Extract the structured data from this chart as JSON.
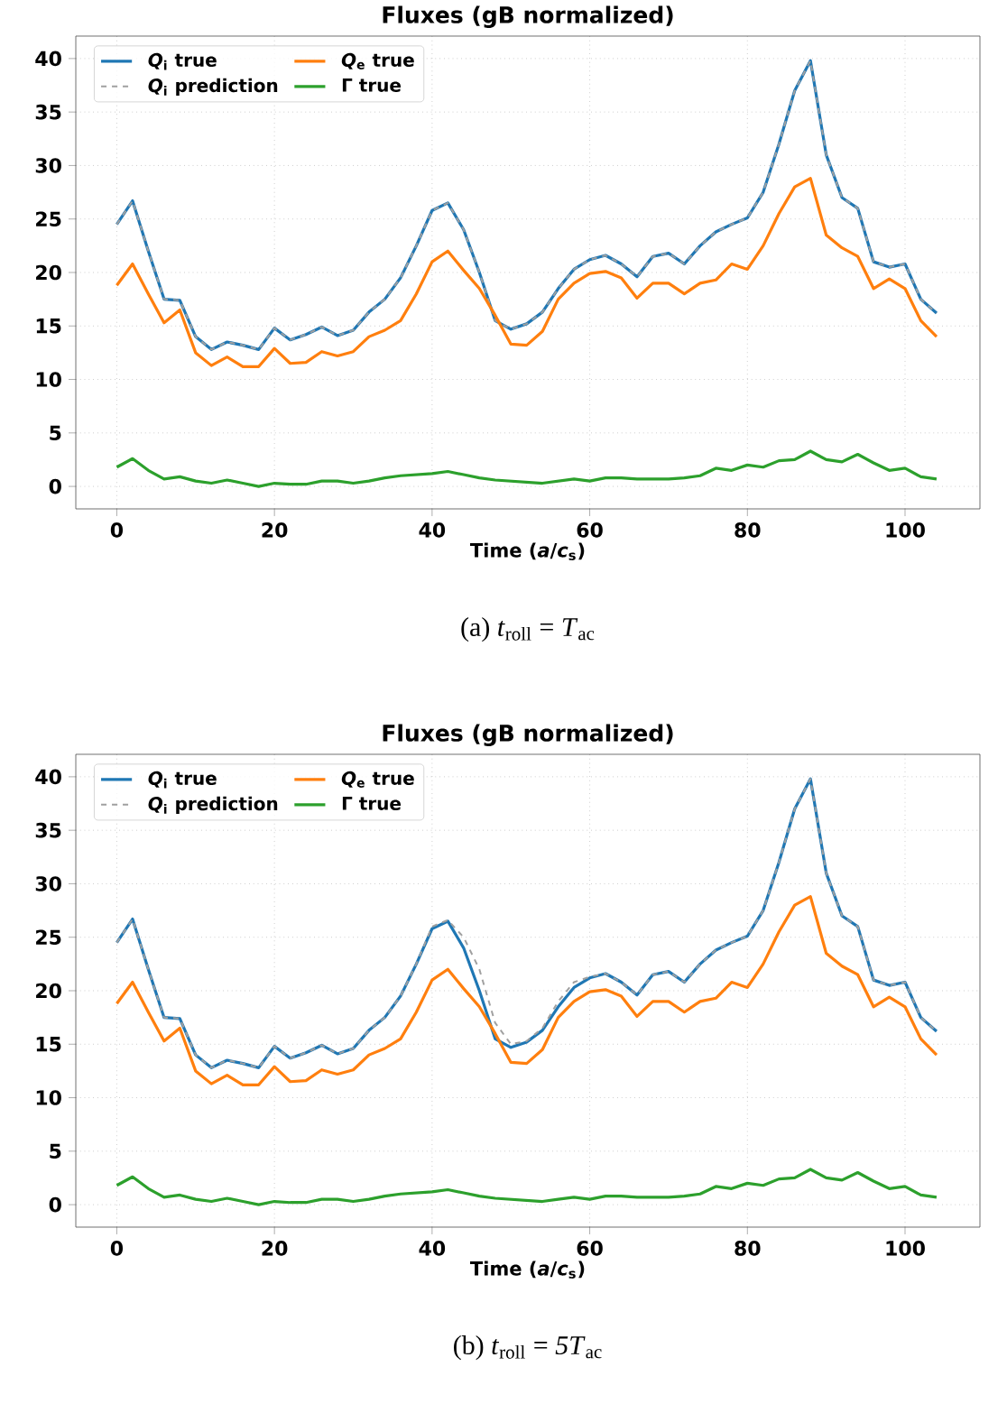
{
  "chart_data": [
    {
      "type": "line",
      "title": "Fluxes (gB normalized)",
      "xlabel": "Time (*a*/*c*$_{s}$)",
      "annotations": [
        "(a) *t*$_{roll}$ = *T*$_{ac}$"
      ],
      "x": [
        0,
        2,
        4,
        6,
        8,
        10,
        12,
        14,
        16,
        18,
        20,
        22,
        24,
        26,
        28,
        30,
        32,
        34,
        36,
        38,
        40,
        42,
        44,
        46,
        48,
        50,
        52,
        54,
        56,
        58,
        60,
        62,
        64,
        66,
        68,
        70,
        72,
        74,
        76,
        78,
        80,
        82,
        84,
        86,
        88,
        90,
        92,
        94,
        96,
        98,
        100,
        102,
        104
      ],
      "series": [
        {
          "name": "*Q*$_{i}$ true",
          "color": "#1f77b4",
          "line_style": "solid",
          "values": [
            24.5,
            26.7,
            22,
            17.5,
            17.4,
            14,
            12.8,
            13.5,
            13.2,
            12.8,
            14.8,
            13.7,
            14.2,
            14.9,
            14.1,
            14.6,
            16.3,
            17.5,
            19.5,
            22.5,
            25.8,
            26.5,
            24,
            20,
            15.5,
            14.7,
            15.2,
            16.3,
            18.5,
            20.3,
            21.2,
            21.6,
            20.8,
            19.6,
            21.5,
            21.8,
            20.8,
            22.5,
            23.8,
            24.5,
            25.1,
            27.5,
            32,
            37,
            39.8,
            31,
            27,
            26,
            21,
            20.5,
            20.8,
            17.5,
            16.2
          ]
        },
        {
          "name": "*Q*$_{i}$ prediction",
          "color": "#a0a0a0",
          "line_style": "dashed",
          "values": [
            24.5,
            26.7,
            22,
            17.5,
            17.4,
            14,
            12.8,
            13.5,
            13.2,
            12.8,
            14.8,
            13.7,
            14.2,
            14.9,
            14.1,
            14.6,
            16.3,
            17.5,
            19.5,
            22.5,
            25.8,
            26.5,
            24,
            20,
            15.5,
            14.7,
            15.2,
            16.3,
            18.5,
            20.3,
            21.2,
            21.6,
            20.8,
            19.6,
            21.5,
            21.8,
            20.8,
            22.5,
            23.8,
            24.5,
            25.1,
            27.5,
            32,
            37,
            39.8,
            31,
            27,
            26,
            21,
            20.5,
            20.8,
            17.5,
            16.2
          ]
        },
        {
          "name": "*Q*$_{e}$ true",
          "color": "#ff7f0e",
          "line_style": "solid",
          "values": [
            18.8,
            20.8,
            18,
            15.3,
            16.5,
            12.5,
            11.3,
            12.1,
            11.2,
            11.2,
            12.9,
            11.5,
            11.6,
            12.6,
            12.2,
            12.6,
            14,
            14.6,
            15.5,
            18,
            21,
            22,
            20.2,
            18.5,
            16,
            13.3,
            13.2,
            14.5,
            17.5,
            19,
            19.9,
            20.1,
            19.5,
            17.6,
            19,
            19,
            18,
            19,
            19.3,
            20.8,
            20.3,
            22.5,
            25.5,
            28,
            28.8,
            23.5,
            22.3,
            21.5,
            18.5,
            19.4,
            18.5,
            15.5,
            14
          ]
        },
        {
          "name": "Γ true",
          "color": "#2ca02c",
          "line_style": "solid",
          "values": [
            1.8,
            2.6,
            1.5,
            0.7,
            0.9,
            0.5,
            0.3,
            0.6,
            0.3,
            0,
            0.3,
            0.2,
            0.2,
            0.5,
            0.5,
            0.3,
            0.5,
            0.8,
            1,
            1.1,
            1.2,
            1.4,
            1.1,
            0.8,
            0.6,
            0.5,
            0.4,
            0.3,
            0.5,
            0.7,
            0.5,
            0.8,
            0.8,
            0.7,
            0.7,
            0.7,
            0.8,
            1,
            1.7,
            1.5,
            2,
            1.8,
            2.4,
            2.5,
            3.3,
            2.5,
            2.3,
            3,
            2.2,
            1.5,
            1.7,
            0.9,
            0.7
          ]
        }
      ],
      "xlim": [
        -5.2,
        109.5
      ],
      "ylim": [
        -2.1,
        42.1
      ],
      "xticks": [
        0,
        20,
        40,
        60,
        80,
        100
      ],
      "yticks": [
        0,
        5,
        10,
        15,
        20,
        25,
        30,
        35,
        40
      ],
      "grid": true,
      "legend": "top left"
    },
    {
      "type": "line",
      "title": "Fluxes (gB normalized)",
      "xlabel": "Time (*a*/*c*$_{s}$)",
      "annotations": [
        "(b) *t*$_{roll}$ = *5T*$_{ac}$"
      ],
      "x": [
        0,
        2,
        4,
        6,
        8,
        10,
        12,
        14,
        16,
        18,
        20,
        22,
        24,
        26,
        28,
        30,
        32,
        34,
        36,
        38,
        40,
        42,
        44,
        46,
        48,
        50,
        52,
        54,
        56,
        58,
        60,
        62,
        64,
        66,
        68,
        70,
        72,
        74,
        76,
        78,
        80,
        82,
        84,
        86,
        88,
        90,
        92,
        94,
        96,
        98,
        100,
        102,
        104
      ],
      "series": [
        {
          "name": "*Q*$_{i}$ true",
          "color": "#1f77b4",
          "line_style": "solid",
          "values": [
            24.5,
            26.7,
            22,
            17.5,
            17.4,
            14,
            12.8,
            13.5,
            13.2,
            12.8,
            14.8,
            13.7,
            14.2,
            14.9,
            14.1,
            14.6,
            16.3,
            17.5,
            19.5,
            22.5,
            25.8,
            26.5,
            24,
            20,
            15.5,
            14.7,
            15.2,
            16.3,
            18.5,
            20.3,
            21.2,
            21.6,
            20.8,
            19.6,
            21.5,
            21.8,
            20.8,
            22.5,
            23.8,
            24.5,
            25.1,
            27.5,
            32,
            37,
            39.8,
            31,
            27,
            26,
            21,
            20.5,
            20.8,
            17.5,
            16.2
          ]
        },
        {
          "name": "*Q*$_{i}$ prediction",
          "color": "#a0a0a0",
          "line_style": "dashed",
          "values": [
            24.5,
            26.7,
            22,
            17.5,
            17.4,
            14,
            12.8,
            13.5,
            13.2,
            12.8,
            14.8,
            13.7,
            14.2,
            14.9,
            14.1,
            14.6,
            16.3,
            17.5,
            19.5,
            22.5,
            26,
            26.6,
            25,
            22,
            17,
            15,
            15.3,
            16.5,
            19,
            20.8,
            21.3,
            21.6,
            20.8,
            19.6,
            21.5,
            21.8,
            20.8,
            22.5,
            23.8,
            24.5,
            25.1,
            27.5,
            32,
            37,
            39.8,
            31,
            27,
            26,
            21,
            20.5,
            20.8,
            17.5,
            16.2
          ]
        },
        {
          "name": "*Q*$_{e}$ true",
          "color": "#ff7f0e",
          "line_style": "solid",
          "values": [
            18.8,
            20.8,
            18,
            15.3,
            16.5,
            12.5,
            11.3,
            12.1,
            11.2,
            11.2,
            12.9,
            11.5,
            11.6,
            12.6,
            12.2,
            12.6,
            14,
            14.6,
            15.5,
            18,
            21,
            22,
            20.2,
            18.5,
            16,
            13.3,
            13.2,
            14.5,
            17.5,
            19,
            19.9,
            20.1,
            19.5,
            17.6,
            19,
            19,
            18,
            19,
            19.3,
            20.8,
            20.3,
            22.5,
            25.5,
            28,
            28.8,
            23.5,
            22.3,
            21.5,
            18.5,
            19.4,
            18.5,
            15.5,
            14
          ]
        },
        {
          "name": "Γ true",
          "color": "#2ca02c",
          "line_style": "solid",
          "values": [
            1.8,
            2.6,
            1.5,
            0.7,
            0.9,
            0.5,
            0.3,
            0.6,
            0.3,
            0,
            0.3,
            0.2,
            0.2,
            0.5,
            0.5,
            0.3,
            0.5,
            0.8,
            1,
            1.1,
            1.2,
            1.4,
            1.1,
            0.8,
            0.6,
            0.5,
            0.4,
            0.3,
            0.5,
            0.7,
            0.5,
            0.8,
            0.8,
            0.7,
            0.7,
            0.7,
            0.8,
            1,
            1.7,
            1.5,
            2,
            1.8,
            2.4,
            2.5,
            3.3,
            2.5,
            2.3,
            3,
            2.2,
            1.5,
            1.7,
            0.9,
            0.7
          ]
        }
      ],
      "xlim": [
        -5.2,
        109.5
      ],
      "ylim": [
        -2.1,
        42.1
      ],
      "xticks": [
        0,
        20,
        40,
        60,
        80,
        100
      ],
      "yticks": [
        0,
        5,
        10,
        15,
        20,
        25,
        30,
        35,
        40
      ],
      "grid": true,
      "legend": "top left"
    }
  ]
}
